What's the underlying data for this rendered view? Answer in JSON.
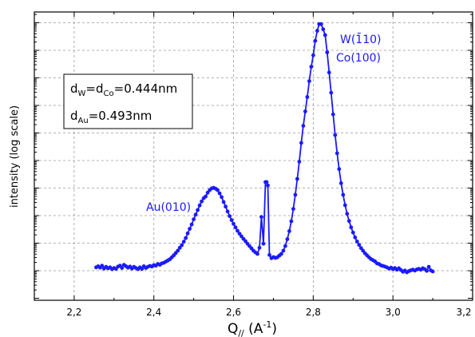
{
  "chart_data": {
    "type": "line",
    "title": "",
    "xlabel": "Q// (A-1)",
    "ylabel": "intensity (log scale)",
    "xlim": [
      2.1,
      3.2
    ],
    "ylim": [
      0,
      1
    ],
    "y_scale": "log (no tick labels)",
    "grid": true,
    "x_ticks": [
      "2,2",
      "2,4",
      "2,6",
      "2,8",
      "3,0",
      "3,2"
    ],
    "x_tick_values": [
      2.2,
      2.4,
      2.6,
      2.8,
      3.0,
      3.2
    ],
    "series": [
      {
        "color": "#1a1aff",
        "marker": "circle",
        "points": [
          [
            2.255,
            0.114
          ],
          [
            2.26,
            0.118
          ],
          [
            2.265,
            0.113
          ],
          [
            2.27,
            0.12
          ],
          [
            2.275,
            0.11
          ],
          [
            2.28,
            0.116
          ],
          [
            2.285,
            0.111
          ],
          [
            2.29,
            0.114
          ],
          [
            2.295,
            0.108
          ],
          [
            2.3,
            0.112
          ],
          [
            2.305,
            0.109
          ],
          [
            2.31,
            0.117
          ],
          [
            2.315,
            0.12
          ],
          [
            2.32,
            0.112
          ],
          [
            2.325,
            0.123
          ],
          [
            2.33,
            0.118
          ],
          [
            2.335,
            0.113
          ],
          [
            2.34,
            0.117
          ],
          [
            2.345,
            0.11
          ],
          [
            2.35,
            0.116
          ],
          [
            2.355,
            0.112
          ],
          [
            2.36,
            0.108
          ],
          [
            2.365,
            0.114
          ],
          [
            2.37,
            0.109
          ],
          [
            2.375,
            0.118
          ],
          [
            2.38,
            0.112
          ],
          [
            2.385,
            0.116
          ],
          [
            2.39,
            0.119
          ],
          [
            2.395,
            0.117
          ],
          [
            2.4,
            0.122
          ],
          [
            2.405,
            0.12
          ],
          [
            2.41,
            0.126
          ],
          [
            2.415,
            0.123
          ],
          [
            2.42,
            0.128
          ],
          [
            2.425,
            0.13
          ],
          [
            2.43,
            0.134
          ],
          [
            2.435,
            0.138
          ],
          [
            2.44,
            0.142
          ],
          [
            2.445,
            0.149
          ],
          [
            2.45,
            0.156
          ],
          [
            2.455,
            0.164
          ],
          [
            2.46,
            0.172
          ],
          [
            2.465,
            0.182
          ],
          [
            2.47,
            0.191
          ],
          [
            2.475,
            0.203
          ],
          [
            2.48,
            0.216
          ],
          [
            2.485,
            0.232
          ],
          [
            2.49,
            0.248
          ],
          [
            2.495,
            0.263
          ],
          [
            2.5,
            0.281
          ],
          [
            2.505,
            0.297
          ],
          [
            2.51,
            0.313
          ],
          [
            2.515,
            0.329
          ],
          [
            2.52,
            0.343
          ],
          [
            2.525,
            0.354
          ],
          [
            2.53,
            0.36
          ],
          [
            2.535,
            0.373
          ],
          [
            2.54,
            0.382
          ],
          [
            2.545,
            0.388
          ],
          [
            2.55,
            0.39
          ],
          [
            2.555,
            0.387
          ],
          [
            2.56,
            0.382
          ],
          [
            2.565,
            0.371
          ],
          [
            2.57,
            0.358
          ],
          [
            2.575,
            0.341
          ],
          [
            2.58,
            0.325
          ],
          [
            2.585,
            0.308
          ],
          [
            2.59,
            0.292
          ],
          [
            2.595,
            0.278
          ],
          [
            2.6,
            0.265
          ],
          [
            2.605,
            0.253
          ],
          [
            2.61,
            0.241
          ],
          [
            2.615,
            0.231
          ],
          [
            2.62,
            0.222
          ],
          [
            2.625,
            0.213
          ],
          [
            2.63,
            0.205
          ],
          [
            2.635,
            0.196
          ],
          [
            2.64,
            0.188
          ],
          [
            2.645,
            0.18
          ],
          [
            2.65,
            0.172
          ],
          [
            2.655,
            0.166
          ],
          [
            2.66,
            0.161
          ],
          [
            2.665,
            0.182
          ],
          [
            2.67,
            0.289
          ],
          [
            2.675,
            0.196
          ],
          [
            2.68,
            0.41
          ],
          [
            2.683,
            0.41
          ],
          [
            2.686,
            0.398
          ],
          [
            2.69,
            0.157
          ],
          [
            2.695,
            0.146
          ],
          [
            2.7,
            0.15
          ],
          [
            2.705,
            0.147
          ],
          [
            2.71,
            0.149
          ],
          [
            2.715,
            0.155
          ],
          [
            2.72,
            0.161
          ],
          [
            2.725,
            0.172
          ],
          [
            2.73,
            0.188
          ],
          [
            2.735,
            0.212
          ],
          [
            2.74,
            0.24
          ],
          [
            2.745,
            0.274
          ],
          [
            2.75,
            0.317
          ],
          [
            2.755,
            0.366
          ],
          [
            2.76,
            0.421
          ],
          [
            2.765,
            0.481
          ],
          [
            2.77,
            0.546
          ],
          [
            2.775,
            0.605
          ],
          [
            2.78,
            0.655
          ],
          [
            2.785,
            0.705
          ],
          [
            2.79,
            0.76
          ],
          [
            2.795,
            0.81
          ],
          [
            2.8,
            0.85
          ],
          [
            2.805,
            0.9
          ],
          [
            2.81,
            0.935
          ],
          [
            2.815,
            0.958
          ],
          [
            2.82,
            0.958
          ],
          [
            2.825,
            0.94
          ],
          [
            2.83,
            0.92
          ],
          [
            2.835,
            0.86
          ],
          [
            2.84,
            0.79
          ],
          [
            2.845,
            0.72
          ],
          [
            2.85,
            0.645
          ],
          [
            2.855,
            0.573
          ],
          [
            2.86,
            0.51
          ],
          [
            2.865,
            0.455
          ],
          [
            2.87,
            0.406
          ],
          [
            2.875,
            0.366
          ],
          [
            2.88,
            0.33
          ],
          [
            2.885,
            0.3
          ],
          [
            2.89,
            0.275
          ],
          [
            2.895,
            0.253
          ],
          [
            2.9,
            0.235
          ],
          [
            2.905,
            0.218
          ],
          [
            2.91,
            0.204
          ],
          [
            2.915,
            0.192
          ],
          [
            2.92,
            0.181
          ],
          [
            2.925,
            0.172
          ],
          [
            2.93,
            0.163
          ],
          [
            2.935,
            0.156
          ],
          [
            2.94,
            0.149
          ],
          [
            2.945,
            0.143
          ],
          [
            2.95,
            0.139
          ],
          [
            2.955,
            0.135
          ],
          [
            2.96,
            0.128
          ],
          [
            2.965,
            0.126
          ],
          [
            2.97,
            0.121
          ],
          [
            2.975,
            0.119
          ],
          [
            2.98,
            0.117
          ],
          [
            2.985,
            0.114
          ],
          [
            2.99,
            0.11
          ],
          [
            2.995,
            0.113
          ],
          [
            3.0,
            0.108
          ],
          [
            3.005,
            0.112
          ],
          [
            3.01,
            0.106
          ],
          [
            3.015,
            0.111
          ],
          [
            3.02,
            0.105
          ],
          [
            3.025,
            0.099
          ],
          [
            3.03,
            0.103
          ],
          [
            3.035,
            0.097
          ],
          [
            3.04,
            0.101
          ],
          [
            3.045,
            0.104
          ],
          [
            3.05,
            0.106
          ],
          [
            3.055,
            0.103
          ],
          [
            3.06,
            0.107
          ],
          [
            3.065,
            0.109
          ],
          [
            3.07,
            0.106
          ],
          [
            3.075,
            0.111
          ],
          [
            3.08,
            0.108
          ],
          [
            3.085,
            0.102
          ],
          [
            3.09,
            0.116
          ],
          [
            3.095,
            0.104
          ],
          [
            3.1,
            0.1
          ]
        ]
      }
    ],
    "annotations": [
      {
        "id": "au",
        "text": "Au(010)"
      },
      {
        "id": "w",
        "text": "W(1̄10)"
      },
      {
        "id": "co",
        "text": "Co(100)"
      }
    ],
    "legend": {
      "placement": "top-left",
      "lines": [
        "dW=dCo=0.444nm",
        "dAu=0.493nm"
      ]
    }
  }
}
